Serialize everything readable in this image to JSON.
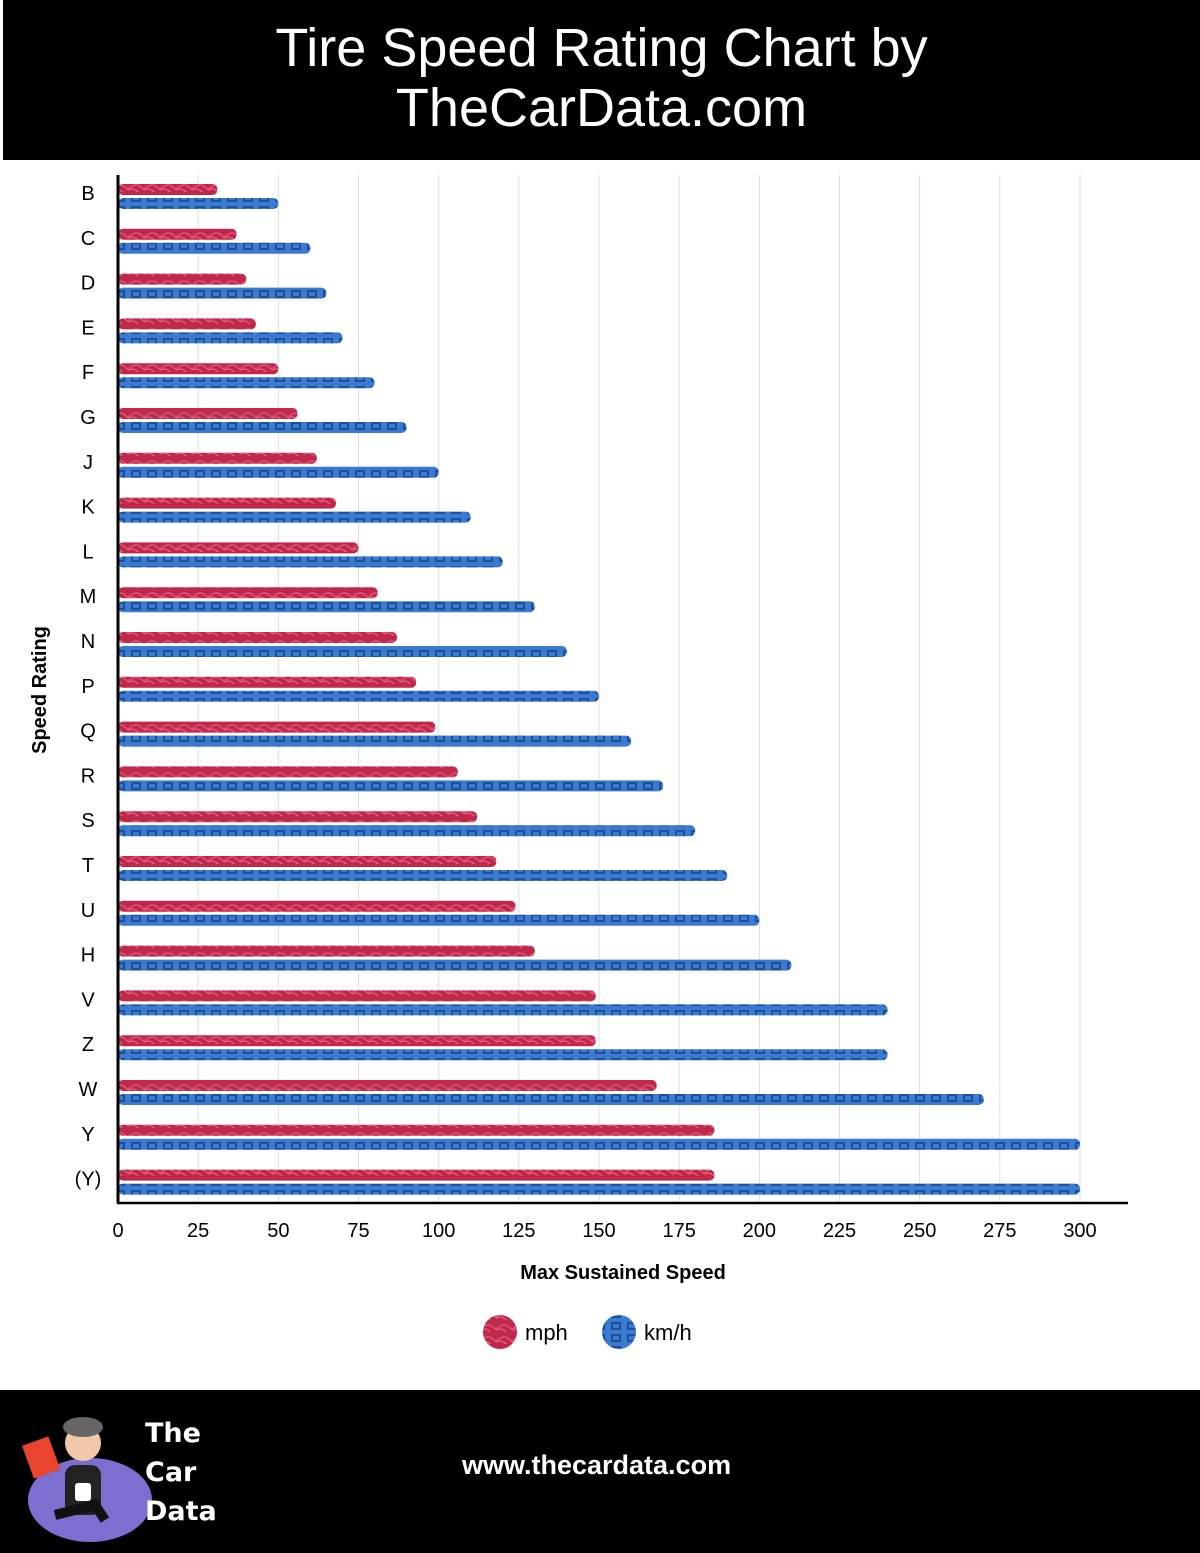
{
  "header": {
    "title_line1": "Tire Speed Rating Chart by",
    "title_line2": "TheCarData.com"
  },
  "chart_data": {
    "type": "bar",
    "orientation": "horizontal",
    "xlabel": "Max Sustained Speed",
    "ylabel": "Speed Rating",
    "xlim": [
      0,
      300
    ],
    "xticks": [
      0,
      25,
      50,
      75,
      100,
      125,
      150,
      175,
      200,
      225,
      250,
      275,
      300
    ],
    "grid": true,
    "legend_position": "bottom",
    "categories": [
      "B",
      "C",
      "D",
      "E",
      "F",
      "G",
      "J",
      "K",
      "L",
      "M",
      "N",
      "P",
      "Q",
      "R",
      "S",
      "T",
      "U",
      "H",
      "V",
      "Z",
      "W",
      "Y",
      "(Y)"
    ],
    "series": [
      {
        "name": "mph",
        "color": "#c0284a",
        "values": [
          31,
          37,
          40,
          43,
          50,
          56,
          62,
          68,
          75,
          81,
          87,
          93,
          99,
          106,
          112,
          118,
          124,
          130,
          149,
          149,
          168,
          186,
          186
        ]
      },
      {
        "name": "km/h",
        "color": "#3a7ad0",
        "values": [
          50,
          60,
          65,
          70,
          80,
          90,
          100,
          110,
          120,
          130,
          140,
          150,
          160,
          170,
          180,
          190,
          200,
          210,
          240,
          240,
          270,
          300,
          300
        ]
      }
    ]
  },
  "footer": {
    "brand_line1": "The",
    "brand_line2": "Car",
    "brand_line3": "Data",
    "url": "www.thecardata.com"
  }
}
